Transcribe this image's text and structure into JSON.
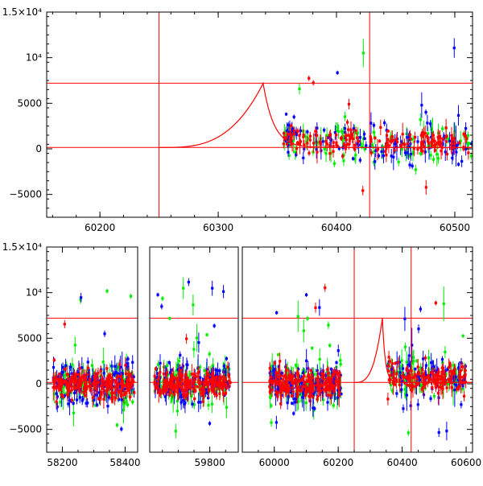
{
  "colors": {
    "axes": "#000000",
    "model": "#ff0000",
    "g_band": "#00ee00",
    "b_band": "#0000ff",
    "r_band": "#ff0000"
  },
  "chart_data": [
    {
      "type": "scatter",
      "title": "",
      "xlabel": "",
      "ylabel": "",
      "xlim": [
        60155,
        60515
      ],
      "ylim": [
        -7500,
        15000
      ],
      "x_ticks": [
        {
          "value": 60200,
          "label": "60200"
        },
        {
          "value": 60300,
          "label": "60300"
        },
        {
          "value": 60400,
          "label": "60400"
        },
        {
          "value": 60500,
          "label": "60500"
        }
      ],
      "y_ticks": [
        {
          "value": 15000,
          "label": "1.5×10⁴"
        },
        {
          "value": 10000,
          "label": "10⁴"
        },
        {
          "value": 5000,
          "label": "5000"
        },
        {
          "value": 0,
          "label": "0"
        },
        {
          "value": -5000,
          "label": "−5000"
        }
      ],
      "reference_lines": {
        "vertical": [
          60250,
          60428
        ],
        "horizontal": [
          7200,
          150
        ]
      },
      "model_curve": {
        "x_start": 60250,
        "peak_x": 60338,
        "peak_y": 7200,
        "baseline": 150
      },
      "data_range": [
        60355,
        60515
      ]
    },
    {
      "type": "scatter",
      "title": "",
      "xlabel": "",
      "ylabel": "",
      "ylim": [
        -7500,
        15000
      ],
      "x_segments": [
        {
          "xlim": [
            58150,
            58440
          ],
          "ticks": [
            {
              "value": 58200,
              "label": "58200"
            },
            {
              "value": 58400,
              "label": "58400"
            }
          ],
          "data_range": [
            58170,
            58430
          ]
        },
        {
          "xlim": [
            59610,
            59890
          ],
          "ticks": [
            {
              "value": 59800,
              "label": "59800"
            }
          ],
          "data_range": [
            59625,
            59865
          ]
        },
        {
          "xlim": [
            59900,
            60620
          ],
          "ticks": [
            {
              "value": 60000,
              "label": "60000"
            },
            {
              "value": 60200,
              "label": "60200"
            },
            {
              "value": 60400,
              "label": "60400"
            },
            {
              "value": 60600,
              "label": "60600"
            }
          ],
          "data_ranges": [
            [
              59985,
              60210
            ],
            [
              60355,
              60600
            ]
          ]
        }
      ],
      "y_ticks": [
        {
          "value": 15000,
          "label": "1.5×10⁴"
        },
        {
          "value": 10000,
          "label": "10⁴"
        },
        {
          "value": 5000,
          "label": "5000"
        },
        {
          "value": 0,
          "label": "0"
        },
        {
          "value": -5000,
          "label": "−5000"
        }
      ],
      "reference_lines": {
        "vertical": [
          60250,
          60428
        ],
        "horizontal": [
          7200,
          150
        ]
      },
      "model_curve": {
        "x_start": 60250,
        "peak_x": 60338,
        "peak_y": 7200,
        "baseline": 150
      }
    }
  ]
}
